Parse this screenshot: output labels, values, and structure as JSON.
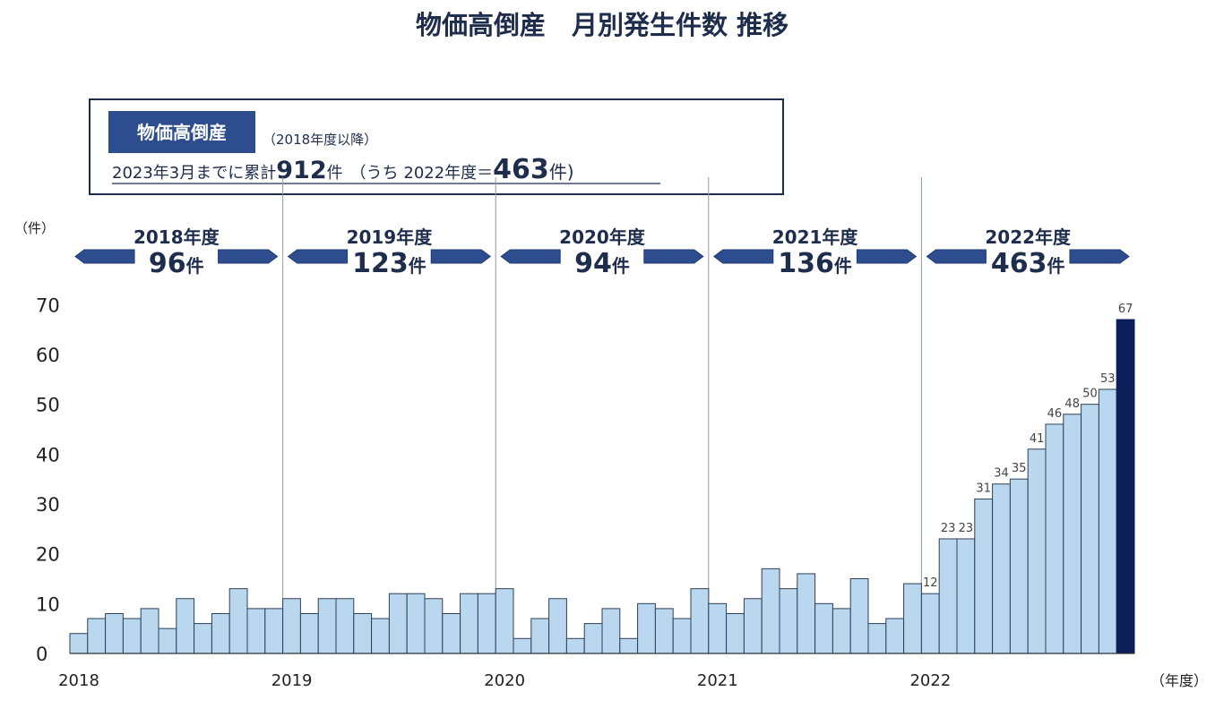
{
  "title": "物価高倒産　月別発生件数 推移",
  "info_box": {
    "tag": "物価高倒産",
    "note": "（2018年度以降）",
    "line_prefix": "2023年3月までに累計",
    "total": "912",
    "unit1": "件",
    "mid": "（うち 2022年度＝",
    "sub_total": "463",
    "unit2": "件)"
  },
  "periods": [
    {
      "label": "2018年度",
      "count": "96",
      "unit": "件"
    },
    {
      "label": "2019年度",
      "count": "123",
      "unit": "件"
    },
    {
      "label": "2020年度",
      "count": "94",
      "unit": "件"
    },
    {
      "label": "2021年度",
      "count": "136",
      "unit": "件"
    },
    {
      "label": "2022年度",
      "count": "463",
      "unit": "件"
    }
  ],
  "y_unit": "（件）",
  "x_unit": "（年度）",
  "chart_data": {
    "type": "bar",
    "title": "物価高倒産　月別発生件数 推移",
    "xlabel": "（年度）",
    "ylabel": "（件）",
    "ylim": [
      0,
      70
    ],
    "yticks": [
      0,
      10,
      20,
      30,
      40,
      50,
      60,
      70
    ],
    "x_tick_labels": [
      "2018",
      "2019",
      "2020",
      "2021",
      "2022"
    ],
    "categories": [
      "2018-04",
      "2018-05",
      "2018-06",
      "2018-07",
      "2018-08",
      "2018-09",
      "2018-10",
      "2018-11",
      "2018-12",
      "2019-01",
      "2019-02",
      "2019-03",
      "2019-04",
      "2019-05",
      "2019-06",
      "2019-07",
      "2019-08",
      "2019-09",
      "2019-10",
      "2019-11",
      "2019-12",
      "2020-01",
      "2020-02",
      "2020-03",
      "2020-04",
      "2020-05",
      "2020-06",
      "2020-07",
      "2020-08",
      "2020-09",
      "2020-10",
      "2020-11",
      "2020-12",
      "2021-01",
      "2021-02",
      "2021-03",
      "2021-04",
      "2021-05",
      "2021-06",
      "2021-07",
      "2021-08",
      "2021-09",
      "2021-10",
      "2021-11",
      "2021-12",
      "2022-01",
      "2022-02",
      "2022-03",
      "2022-04",
      "2022-05",
      "2022-06",
      "2022-07",
      "2022-08",
      "2022-09",
      "2022-10",
      "2022-11",
      "2022-12",
      "2023-01",
      "2023-02",
      "2023-03"
    ],
    "values": [
      4,
      7,
      8,
      7,
      9,
      5,
      11,
      6,
      8,
      13,
      9,
      9,
      11,
      8,
      11,
      11,
      8,
      7,
      12,
      12,
      11,
      8,
      12,
      12,
      13,
      3,
      7,
      11,
      3,
      6,
      9,
      3,
      10,
      9,
      7,
      13,
      10,
      8,
      11,
      17,
      13,
      16,
      10,
      9,
      15,
      6,
      7,
      14,
      12,
      23,
      23,
      31,
      34,
      35,
      41,
      46,
      48,
      50,
      53,
      67
    ],
    "data_labels": {
      "48": "12",
      "49": "23",
      "50": "23",
      "51": "31",
      "52": "34",
      "53": "35",
      "54": "41",
      "55": "46",
      "56": "48",
      "57": "50",
      "58": "53",
      "59": "67"
    },
    "colors": {
      "bar": "#b9d7ee",
      "highlight": "#0b1f5b",
      "arrow": "#2d4d8e"
    }
  }
}
